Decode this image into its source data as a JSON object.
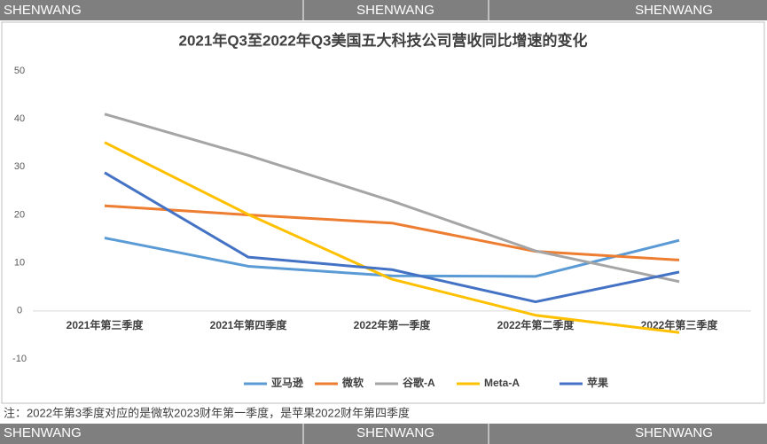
{
  "watermarks": {
    "top": [
      "SHENWANG",
      "SHENWANG",
      "SHENWANG"
    ],
    "bottom": [
      "SHENWANG",
      "SHENWANG",
      "SHENWANG"
    ]
  },
  "note": "注：2022年第3季度对应的是微软2023财年第一季度，是苹果2022财年第四季度",
  "chart_data": {
    "type": "line",
    "title": "2021年Q3至2022年Q3美国五大科技公司营收同比增速的变化",
    "categories": [
      "2021年第三季度",
      "2021年第四季度",
      "2022年第一季度",
      "2022年第二季度",
      "2022年第三季度"
    ],
    "series": [
      {
        "name": "亚马逊",
        "color": "#5b9bd5",
        "values": [
          15.2,
          9.3,
          7.3,
          7.2,
          14.7
        ]
      },
      {
        "name": "微软",
        "color": "#ed7d31",
        "values": [
          21.9,
          20.0,
          18.3,
          12.4,
          10.6
        ]
      },
      {
        "name": "谷歌-A",
        "color": "#a5a5a5",
        "values": [
          41.0,
          32.4,
          22.9,
          12.5,
          6.1
        ]
      },
      {
        "name": "Meta-A",
        "color": "#ffc000",
        "values": [
          35.1,
          20.1,
          6.6,
          -0.9,
          -4.5
        ]
      },
      {
        "name": "苹果",
        "color": "#4472c4",
        "values": [
          28.8,
          11.2,
          8.6,
          1.9,
          8.1
        ]
      }
    ],
    "ylim": [
      -10,
      50
    ],
    "yticks": [
      -10,
      0,
      10,
      20,
      30,
      40,
      50
    ],
    "grid": false,
    "legend": "bottom"
  }
}
